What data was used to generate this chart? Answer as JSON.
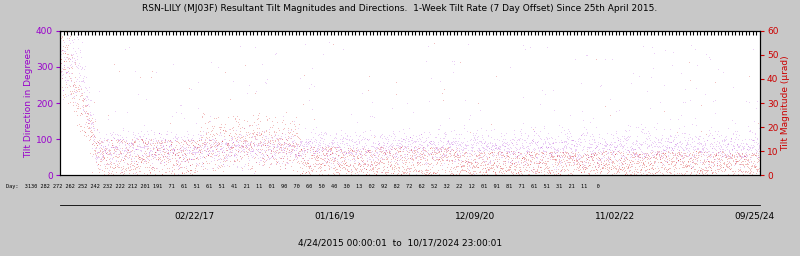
{
  "title": "RSN-LILY (MJ03F) Resultant Tilt Magnitudes and Directions.  1-Week Tilt Rate (7 Day Offset) Since 25th April 2015.",
  "xlabel_range": "4/24/2015 00:00:01  to  10/17/2024 23:00:01",
  "ylabel_left": "Tilt Direction in Degrees",
  "ylabel_right": "Tilt Magnitude (μrad)",
  "ylim_left": [
    0,
    400
  ],
  "ylim_right": [
    0,
    60
  ],
  "yticks_left": [
    0,
    100,
    200,
    300,
    400
  ],
  "yticks_right": [
    0,
    10,
    20,
    30,
    40,
    50,
    60
  ],
  "date_ticks": [
    "02/22/17",
    "01/16/19",
    "12/09/20",
    "11/02/22",
    "09/25/24"
  ],
  "day_label": "Day:  3130 282 272 262 252 242 232 222 212 201 191  71  61  51  61  51  41  21  11  01  90  70  60  50  40  30  13  02  92  82  72  62  52  32  22  12  01  91  81  71  61  51  31  21  11   0",
  "color_direction": "#9900cc",
  "color_magnitude": "#cc0000",
  "fig_bg": "#c8c8c8",
  "plot_bg": "#ffffff",
  "title_color": "#000000",
  "left_label_color": "#9900cc",
  "right_label_color": "#cc0000"
}
